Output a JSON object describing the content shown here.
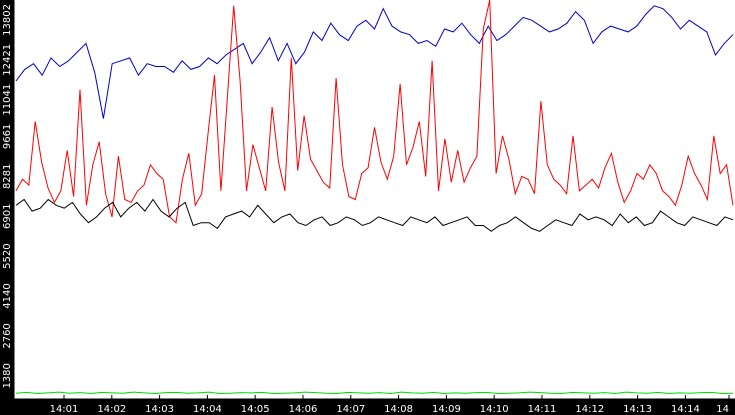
{
  "chart_data": {
    "type": "line",
    "title": "",
    "xlabel": "",
    "ylabel": "",
    "ylim": [
      0,
      13802
    ],
    "y_ticks": [
      "1380",
      "2760",
      "4140",
      "5520",
      "6901",
      "8281",
      "9661",
      "11041",
      "12421",
      "13802"
    ],
    "x_ticks": [
      "14:01",
      "14:02",
      "14:03",
      "14:04",
      "14:05",
      "14:06",
      "14:07",
      "14:08",
      "14:09",
      "14:10",
      "14:11",
      "14:12",
      "14:13",
      "14:14",
      "14"
    ],
    "grid": false,
    "legend": "none",
    "colors": {
      "background": "#000000",
      "plot": "#ffffff",
      "axis": "#000000",
      "text": "#ffffff"
    },
    "series": [
      {
        "color": "#0000cc",
        "values": [
          11000,
          11400,
          11600,
          11200,
          11800,
          11500,
          11700,
          12000,
          12300,
          11300,
          9700,
          11600,
          11700,
          11800,
          11200,
          11600,
          11500,
          11500,
          11300,
          11700,
          11400,
          11500,
          11800,
          11600,
          11900,
          12100,
          12300,
          11600,
          12000,
          12500,
          11700,
          12300,
          11600,
          12000,
          12700,
          12400,
          13000,
          12600,
          12400,
          12900,
          13100,
          12800,
          13500,
          12900,
          12700,
          12600,
          12300,
          12400,
          12200,
          12800,
          12700,
          13000,
          12600,
          12300,
          12900,
          12400,
          12600,
          12900,
          13200,
          13100,
          12900,
          12700,
          12800,
          13000,
          13400,
          13100,
          12300,
          12700,
          12900,
          12800,
          12700,
          12900,
          13300,
          13600,
          13500,
          13200,
          12800,
          13100,
          12900,
          12700,
          11900,
          12300,
          12600
        ]
      },
      {
        "color": "#ff0000",
        "values": [
          7200,
          7600,
          7400,
          9600,
          8200,
          7300,
          6800,
          7200,
          8600,
          7000,
          10700,
          6700,
          8100,
          8900,
          7100,
          6300,
          8400,
          6900,
          6800,
          7200,
          7400,
          8100,
          7800,
          7600,
          6300,
          6100,
          7600,
          8500,
          6700,
          7100,
          9200,
          11200,
          7200,
          10400,
          13600,
          11000,
          7200,
          8800,
          8000,
          7200,
          10100,
          8200,
          7200,
          11800,
          7900,
          9800,
          8300,
          7900,
          7500,
          7300,
          11100,
          8100,
          7000,
          6900,
          7800,
          8000,
          9400,
          8200,
          7600,
          8400,
          10900,
          8100,
          8700,
          9600,
          7700,
          11700,
          7200,
          9000,
          7500,
          8600,
          7500,
          8000,
          8400,
          12800,
          13800,
          7800,
          9100,
          8300,
          7100,
          7700,
          7600,
          7100,
          10300,
          8100,
          7600,
          7400,
          7100,
          9100,
          7200,
          7400,
          7600,
          7300,
          8000,
          8500,
          7500,
          6800,
          7200,
          7800,
          7600,
          8100,
          7800,
          7200,
          7000,
          6700,
          7400,
          8400,
          7800,
          7400,
          6900,
          9100,
          7800,
          8100,
          6700
        ]
      },
      {
        "color": "#000000",
        "values": [
          6700,
          6900,
          6500,
          6600,
          6900,
          6700,
          6600,
          6800,
          6400,
          6100,
          6300,
          6600,
          6800,
          6300,
          6600,
          6800,
          6500,
          6900,
          6500,
          6300,
          6600,
          6800,
          6000,
          6100,
          6100,
          5900,
          6300,
          6400,
          6500,
          6300,
          6700,
          6400,
          6100,
          6300,
          6400,
          6100,
          6000,
          6200,
          6300,
          6000,
          6100,
          6300,
          6200,
          6000,
          6100,
          6300,
          6200,
          6100,
          6000,
          6300,
          6200,
          6100,
          6300,
          6000,
          6100,
          6200,
          6300,
          6000,
          6000,
          5800,
          6000,
          6100,
          6300,
          6100,
          5900,
          5800,
          6000,
          6200,
          6100,
          6000,
          6400,
          6200,
          6300,
          6200,
          6000,
          6400,
          6100,
          6300,
          6000,
          6100,
          6500,
          6300,
          6100,
          6000,
          6300,
          6200,
          6100,
          6000,
          6300,
          6200
        ]
      },
      {
        "color": "#00dd00",
        "values": [
          200,
          230,
          190,
          210,
          240,
          200,
          220,
          190,
          230,
          210,
          200,
          240,
          210,
          190,
          220,
          230,
          200,
          210,
          240,
          190,
          200,
          220,
          210,
          230,
          190,
          200,
          210,
          240,
          220,
          200,
          190,
          230,
          210,
          200,
          220,
          190,
          240,
          210,
          200,
          230,
          190,
          210,
          200,
          220,
          230,
          190,
          200,
          210,
          240,
          220,
          200,
          190,
          230,
          210,
          200,
          220,
          190,
          240,
          210,
          200,
          230,
          190,
          210,
          200,
          220,
          230,
          190,
          200
        ]
      }
    ]
  }
}
